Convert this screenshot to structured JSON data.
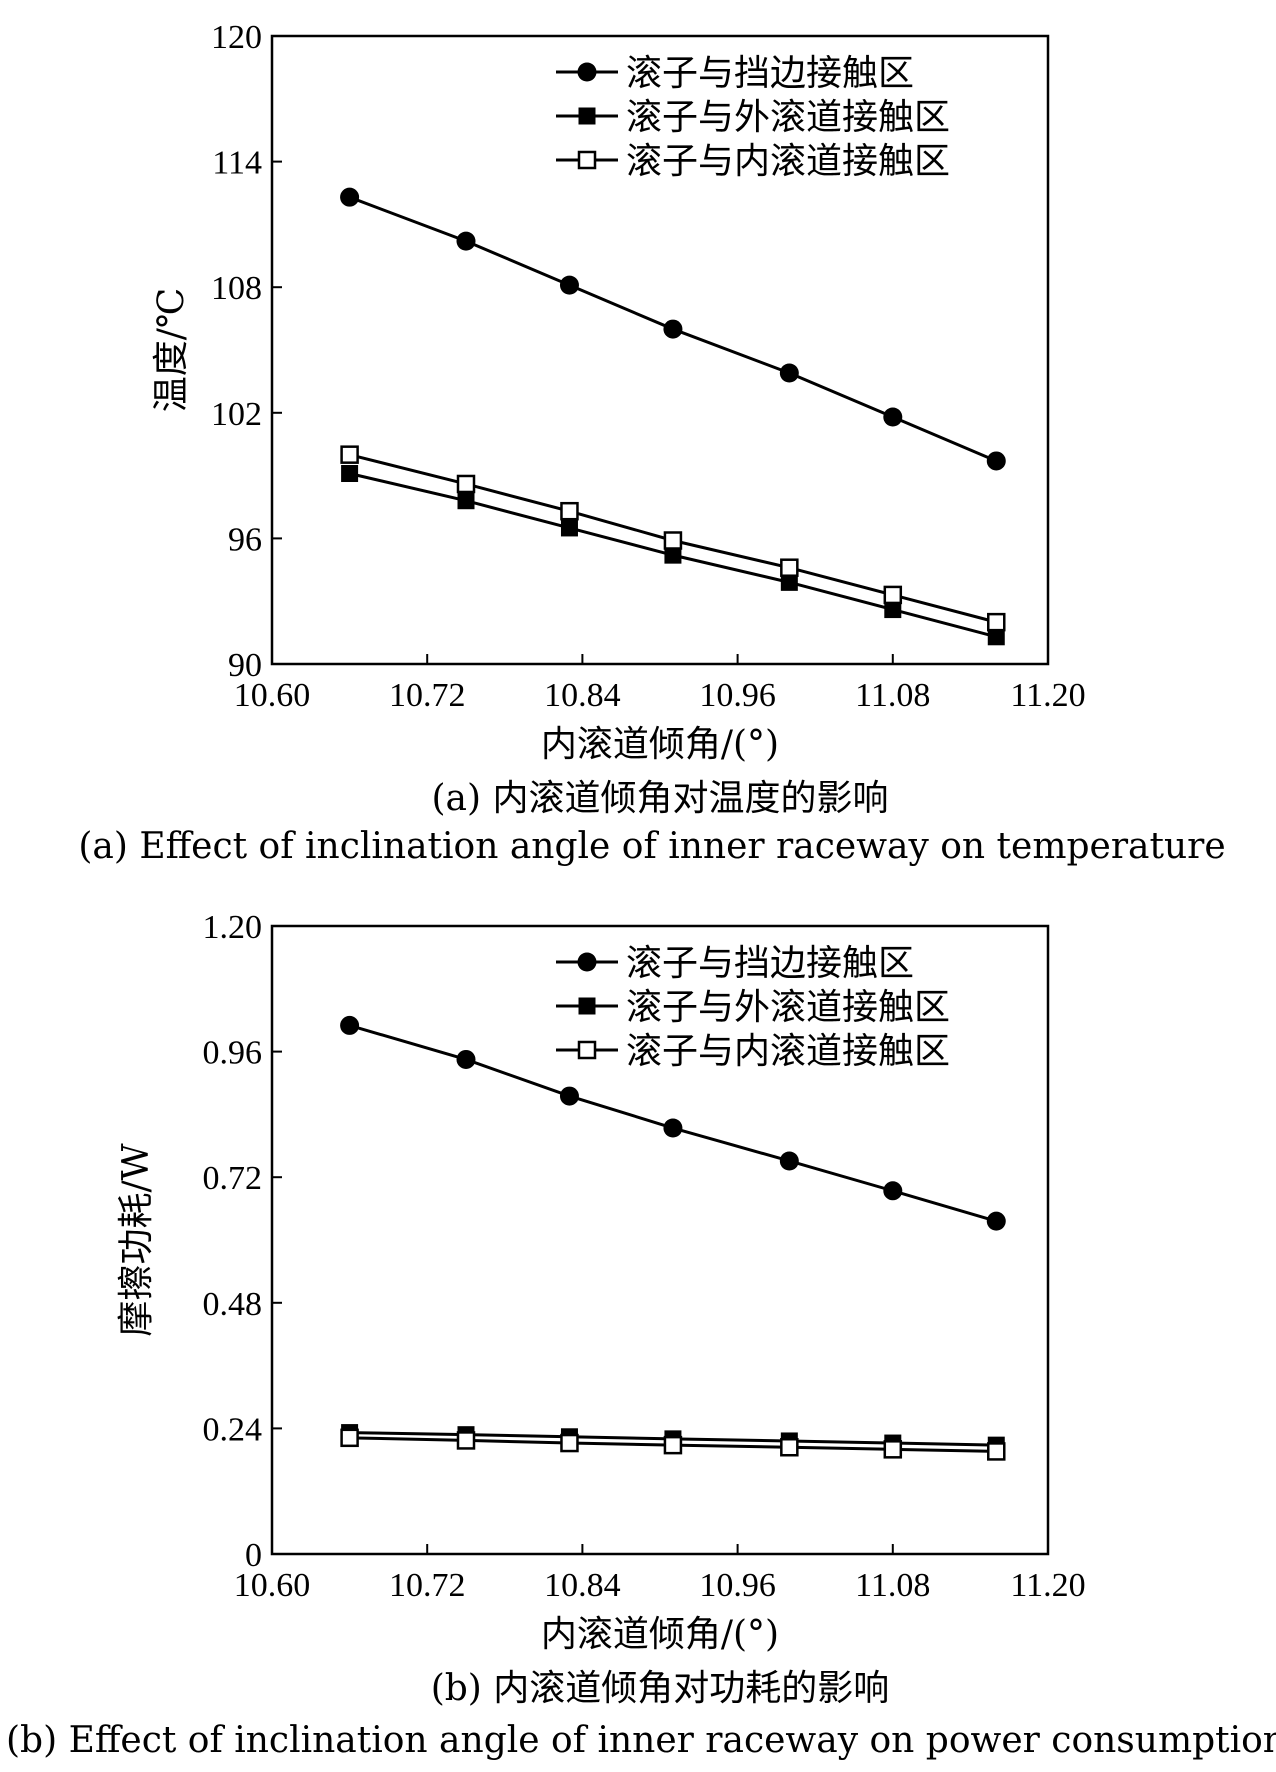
{
  "chart_data": [
    {
      "type": "line",
      "x": [
        10.66,
        10.75,
        10.83,
        10.91,
        11.0,
        11.08,
        11.16
      ],
      "xlim": [
        10.6,
        11.2
      ],
      "xticks": [
        "10.60",
        "10.72",
        "10.84",
        "10.96",
        "11.08",
        "11.20"
      ],
      "ylim": [
        90,
        120
      ],
      "yticks": [
        "90",
        "96",
        "102",
        "108",
        "114",
        "120"
      ],
      "xlabel": "内滚道倾角/(°)",
      "ylabel": "温度/℃",
      "legend": "top-right",
      "series": [
        {
          "name": "滚子与挡边接触区",
          "marker": "filled-circle",
          "values": [
            112.3,
            110.2,
            108.1,
            106.0,
            103.9,
            101.8,
            99.7
          ]
        },
        {
          "name": "滚子与外滚道接触区",
          "marker": "filled-square",
          "values": [
            99.1,
            97.8,
            96.5,
            95.2,
            93.9,
            92.6,
            91.3
          ]
        },
        {
          "name": "滚子与内滚道接触区",
          "marker": "open-square",
          "values": [
            100.0,
            98.6,
            97.3,
            95.9,
            94.6,
            93.3,
            92.0
          ]
        }
      ],
      "caption_cn": "(a) 内滚道倾角对温度的影响",
      "caption_en": "(a) Effect of inclination angle of inner raceway on temperature"
    },
    {
      "type": "line",
      "x": [
        10.66,
        10.75,
        10.83,
        10.91,
        11.0,
        11.08,
        11.16
      ],
      "xlim": [
        10.6,
        11.2
      ],
      "xticks": [
        "10.60",
        "10.72",
        "10.84",
        "10.96",
        "11.08",
        "11.20"
      ],
      "ylim": [
        0,
        1.2
      ],
      "yticks": [
        "0",
        "0.24",
        "0.48",
        "0.72",
        "0.96",
        "1.20"
      ],
      "xlabel": "内滚道倾角/(°)",
      "ylabel": "摩擦功耗/W",
      "legend": "top-right",
      "series": [
        {
          "name": "滚子与挡边接触区",
          "marker": "filled-circle",
          "values": [
            1.01,
            0.945,
            0.875,
            0.814,
            0.751,
            0.694,
            0.636
          ]
        },
        {
          "name": "滚子与外滚道接触区",
          "marker": "filled-square",
          "values": [
            0.232,
            0.228,
            0.224,
            0.22,
            0.216,
            0.212,
            0.208
          ]
        },
        {
          "name": "滚子与内滚道接触区",
          "marker": "open-square",
          "values": [
            0.222,
            0.217,
            0.212,
            0.208,
            0.204,
            0.2,
            0.196
          ]
        }
      ],
      "caption_cn": "(b) 内滚道倾角对功耗的影响",
      "caption_en": "(b) Effect of inclination angle of inner raceway on power consumption"
    }
  ]
}
